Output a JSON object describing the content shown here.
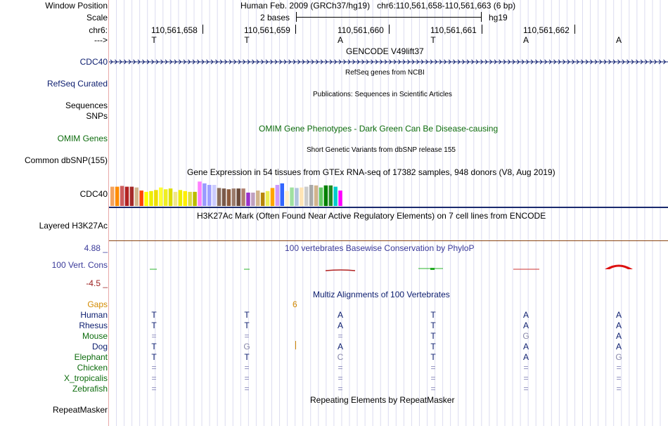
{
  "header": {
    "window_position_label": "Window Position",
    "window_position_value": "Human Feb. 2009 (GRCh37/hg19)   chr6:110,561,658-110,561,663 (6 bp)",
    "scale_label": "Scale",
    "scale_value": "2 bases",
    "scale_assembly": "hg19",
    "chrom_label": "chr6:",
    "arrow_label": "--->",
    "positions": [
      "110,561,658",
      "110,561,659",
      "110,561,660",
      "110,561,661",
      "110,561,662"
    ],
    "bases": [
      "T",
      "T",
      "A",
      "T",
      "A",
      "A"
    ]
  },
  "tracks": {
    "gencode": {
      "title": "GENCODE V49lift37",
      "label": "CDC40"
    },
    "refseq": {
      "title": "RefSeq genes from NCBI",
      "label": "RefSeq Curated"
    },
    "publications": {
      "title": "Publications: Sequences in Scientific Articles",
      "label1": "Sequences",
      "label2": "SNPs"
    },
    "omim": {
      "title": "OMIM Gene Phenotypes - Dark Green Can Be Disease-causing",
      "label": "OMIM Genes"
    },
    "dbsnp": {
      "title": "Short Genetic Variants from dbSNP release 155",
      "label": "Common dbSNP(155)"
    },
    "gtex": {
      "title": "Gene Expression in 54 tissues from GTEx RNA-seq of 17382 samples, 948 donors (V8, Aug 2019)",
      "label": "CDC40",
      "colors": [
        "#f4a460",
        "#ff8c00",
        "#cd5c5c",
        "#b22222",
        "#a52a2a",
        "#d2b48c",
        "#ff4500",
        "#ffff00",
        "#eeee00",
        "#eedd00",
        "#ffff33",
        "#eeee22",
        "#dddd00",
        "#f0e68c",
        "#eeee00",
        "#ffee00",
        "#dddd44",
        "#bbbb00",
        "#ff80ff",
        "#9999ff",
        "#a0a0ff",
        "#ccccff",
        "#8b6f5e",
        "#7a5a4a",
        "#8b5a3c",
        "#9b7b6b",
        "#6b4a3a",
        "#b08070",
        "#9932cc",
        "#c0a0c0",
        "#d2b48c",
        "#b8860b",
        "#eeee55",
        "#ffa500",
        "#cc99ff",
        "#3366ff",
        "#ffeecc",
        "#a0e0a0",
        "#b0c4de",
        "#ffe4b5",
        "#cccccc",
        "#aaaaaa",
        "#d2b48c",
        "#66cc66",
        "#008000",
        "#228b22",
        "#00cccc",
        "#ff00ff"
      ],
      "values": [
        0.75,
        0.75,
        0.78,
        0.75,
        0.75,
        0.72,
        0.6,
        0.55,
        0.58,
        0.62,
        0.72,
        0.65,
        0.68,
        0.55,
        0.62,
        0.58,
        0.55,
        0.55,
        0.95,
        0.88,
        0.82,
        0.82,
        0.7,
        0.68,
        0.65,
        0.68,
        0.68,
        0.68,
        0.52,
        0.52,
        0.6,
        0.52,
        0.58,
        0.7,
        0.82,
        0.88,
        0.58,
        0.72,
        0.7,
        0.72,
        0.75,
        0.82,
        0.8,
        0.72,
        0.8,
        0.8,
        0.75,
        0.6
      ]
    },
    "h3k27ac": {
      "title": "H3K27Ac Mark (Often Found Near Active Regulatory Elements) on 7 cell lines from ENCODE",
      "label": "Layered H3K27Ac"
    },
    "phylop": {
      "title": "100 vertebrates Basewise Conservation by PhyloP",
      "label": "100 Vert. Cons",
      "max": "4.88 _",
      "min": "-4.5 _"
    },
    "multiz": {
      "title": "Multiz Alignments of 100 Vertebrates",
      "gaps_label": "Gaps",
      "gaps_value": "6",
      "species": [
        {
          "name": "Human",
          "bases": [
            "T",
            "T",
            "A",
            "T",
            "A",
            "A"
          ]
        },
        {
          "name": "Rhesus",
          "bases": [
            "T",
            "T",
            "A",
            "T",
            "A",
            "A"
          ]
        },
        {
          "name": "Mouse",
          "bases": [
            "=",
            "=",
            "=",
            "T",
            "G",
            "A"
          ]
        },
        {
          "name": "Dog",
          "bases": [
            "T",
            "G",
            "A",
            "T",
            "A",
            "A"
          ]
        },
        {
          "name": "Elephant",
          "bases": [
            "T",
            "T",
            "C",
            "T",
            "A",
            "G"
          ]
        },
        {
          "name": "Chicken",
          "bases": [
            "=",
            "=",
            "=",
            "=",
            "=",
            "="
          ]
        },
        {
          "name": "X_tropicalis",
          "bases": [
            "=",
            "=",
            "=",
            "=",
            "=",
            "="
          ]
        },
        {
          "name": "Zebrafish",
          "bases": [
            "=",
            "=",
            "=",
            "=",
            "=",
            "="
          ]
        }
      ]
    },
    "repeatmasker": {
      "title": "Repeating Elements by RepeatMasker",
      "label": "RepeatMasker"
    }
  }
}
